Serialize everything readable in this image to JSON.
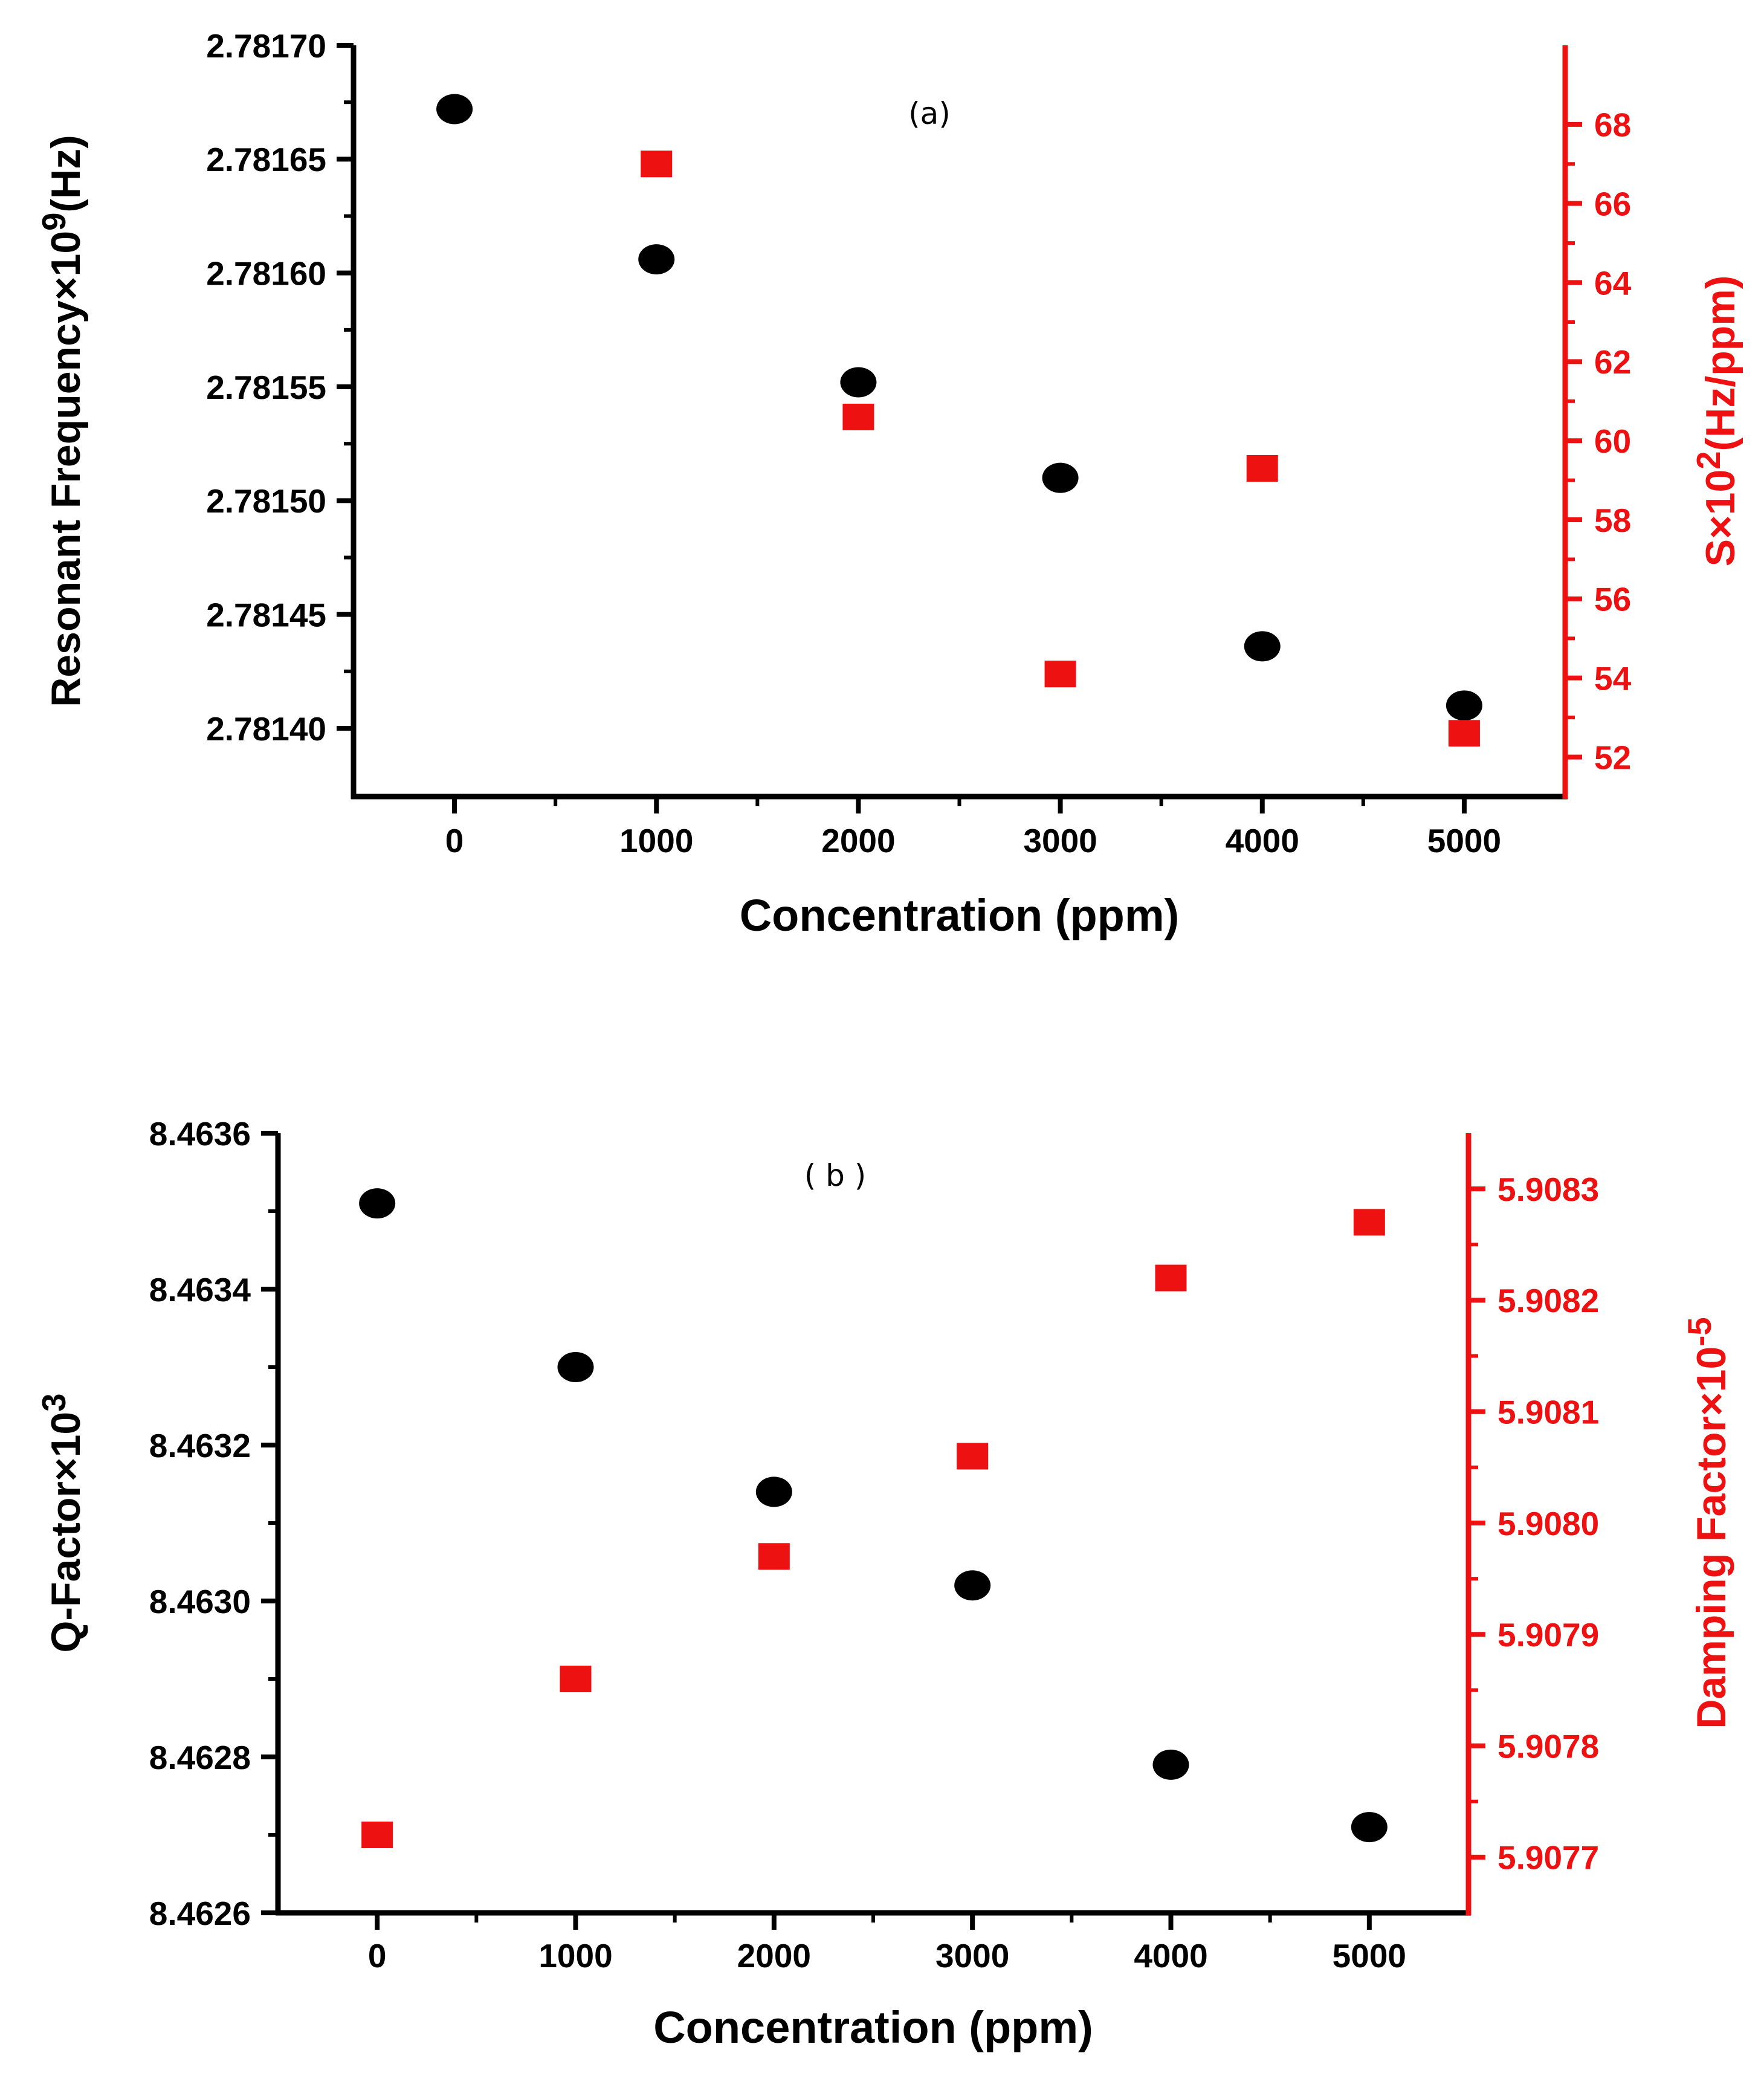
{
  "colors": {
    "left_series": "#000000",
    "right_series": "#ee1111",
    "axis_left": "#000000",
    "axis_right": "#ee1111"
  },
  "chart_data": [
    {
      "type": "scatter",
      "panel_label": "(a)",
      "x": [
        0,
        1000,
        2000,
        3000,
        4000,
        5000
      ],
      "xlabel": "Concentration (ppm)",
      "xlim": [
        -500,
        5500
      ],
      "xticks": [
        0,
        1000,
        2000,
        3000,
        4000,
        5000
      ],
      "xtick_labels": [
        "0",
        "1000",
        "2000",
        "3000",
        "4000",
        "5000"
      ],
      "left_axis": {
        "label_main": "Resonant Frequency×10",
        "label_sup": "9",
        "label_tail": "(Hz)",
        "lim": [
          2.78137,
          2.7817
        ],
        "ticks": [
          2.7814,
          2.78145,
          2.7815,
          2.78155,
          2.7816,
          2.78165,
          2.7817
        ],
        "tick_labels": [
          "2.78140",
          "2.78145",
          "2.78150",
          "2.78155",
          "2.78160",
          "2.78165",
          "2.78170"
        ]
      },
      "right_axis": {
        "label_main": "S×10",
        "label_sup": "2",
        "label_tail": "(Hz/ppm)",
        "lim": [
          51,
          70
        ],
        "ticks": [
          52,
          54,
          56,
          58,
          60,
          62,
          64,
          66,
          68
        ],
        "tick_labels": [
          "52",
          "54",
          "56",
          "58",
          "60",
          "62",
          "64",
          "66",
          "68"
        ]
      },
      "series": [
        {
          "name": "Resonant Frequency",
          "axis": "left",
          "marker": "circle",
          "x": [
            0,
            1000,
            2000,
            3000,
            4000,
            5000
          ],
          "values": [
            2.781672,
            2.781606,
            2.781552,
            2.78151,
            2.781436,
            2.78141
          ]
        },
        {
          "name": "S",
          "axis": "right",
          "marker": "square",
          "x": [
            1000,
            2000,
            3000,
            4000,
            5000
          ],
          "values": [
            67,
            60.6,
            54.1,
            59.3,
            52.6
          ]
        }
      ]
    },
    {
      "type": "scatter",
      "panel_label": "( b )",
      "x": [
        0,
        1000,
        2000,
        3000,
        4000,
        5000
      ],
      "xlabel": "Concentration (ppm)",
      "xlim": [
        -500,
        5500
      ],
      "xticks": [
        0,
        1000,
        2000,
        3000,
        4000,
        5000
      ],
      "xtick_labels": [
        "0",
        "1000",
        "2000",
        "3000",
        "4000",
        "5000"
      ],
      "left_axis": {
        "label_main": "Q-Factor×10",
        "label_sup": "3",
        "label_tail": "",
        "lim": [
          8.4626,
          8.4636
        ],
        "ticks": [
          8.4626,
          8.4628,
          8.463,
          8.4632,
          8.4634,
          8.4636
        ],
        "tick_labels": [
          "8.4626",
          "8.4628",
          "8.4630",
          "8.4632",
          "8.4634",
          "8.4636"
        ]
      },
      "right_axis": {
        "label_main": "Damping Factor×10",
        "label_sup": "-5",
        "label_tail": "",
        "lim": [
          5.90765,
          5.90835
        ],
        "ticks": [
          5.9077,
          5.9078,
          5.9079,
          5.908,
          5.9081,
          5.9082,
          5.9083
        ],
        "tick_labels": [
          "5.9077",
          "5.9078",
          "5.9079",
          "5.9080",
          "5.9081",
          "5.9082",
          "5.9083"
        ]
      },
      "series": [
        {
          "name": "Q-Factor",
          "axis": "left",
          "marker": "circle",
          "x": [
            0,
            1000,
            2000,
            3000,
            4000,
            5000
          ],
          "values": [
            8.46351,
            8.4633,
            8.46314,
            8.46302,
            8.46279,
            8.46271
          ]
        },
        {
          "name": "Damping Factor",
          "axis": "right",
          "marker": "square",
          "x": [
            0,
            1000,
            2000,
            3000,
            4000,
            5000
          ],
          "values": [
            5.90772,
            5.90786,
            5.90797,
            5.90806,
            5.90822,
            5.90827
          ]
        }
      ]
    }
  ]
}
